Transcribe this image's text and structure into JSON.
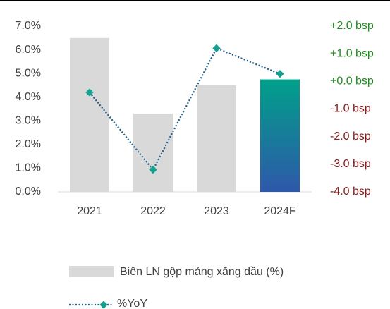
{
  "chart_data": {
    "type": "bar_line",
    "categories": [
      "2021",
      "2022",
      "2023",
      "2024F"
    ],
    "series": [
      {
        "name": "Biên LN gộp mảng xăng dầu (%)",
        "type": "bar",
        "color": "#d9d9d9",
        "highlight_index": 3,
        "highlight_gradient": [
          "#00a08a",
          "#2e58aa"
        ],
        "values": [
          6.5,
          3.3,
          4.5,
          4.75
        ]
      },
      {
        "name": "%YoY",
        "type": "line",
        "axis": "y2",
        "color": "#1f5f8b",
        "marker_color": "#14a08e",
        "values": [
          -0.4,
          -3.2,
          1.2,
          0.27
        ]
      }
    ],
    "ylim": [
      0,
      7
    ],
    "yticks": [
      {
        "value": 0,
        "label": "0.0%"
      },
      {
        "value": 1,
        "label": "1.0%"
      },
      {
        "value": 2,
        "label": "2.0%"
      },
      {
        "value": 3,
        "label": "3.0%"
      },
      {
        "value": 4,
        "label": "4.0%"
      },
      {
        "value": 5,
        "label": "5.0%"
      },
      {
        "value": 6,
        "label": "6.0%"
      },
      {
        "value": 7,
        "label": "7.0%"
      }
    ],
    "y2lim": [
      -4,
      2
    ],
    "y2ticks": [
      {
        "value": -4,
        "label": "-4.0 bsp"
      },
      {
        "value": -3,
        "label": "-3.0 bsp"
      },
      {
        "value": -2,
        "label": "-2.0 bsp"
      },
      {
        "value": -1,
        "label": "-1.0 bsp"
      },
      {
        "value": 0,
        "label": "+0.0 bsp"
      },
      {
        "value": 1,
        "label": "+1.0 bsp"
      },
      {
        "value": 2,
        "label": "+2.0 bsp"
      }
    ],
    "y2_positive_color": "#1e8c1e",
    "y2_negative_color": "#8b1a1a",
    "legend": "bottom"
  }
}
